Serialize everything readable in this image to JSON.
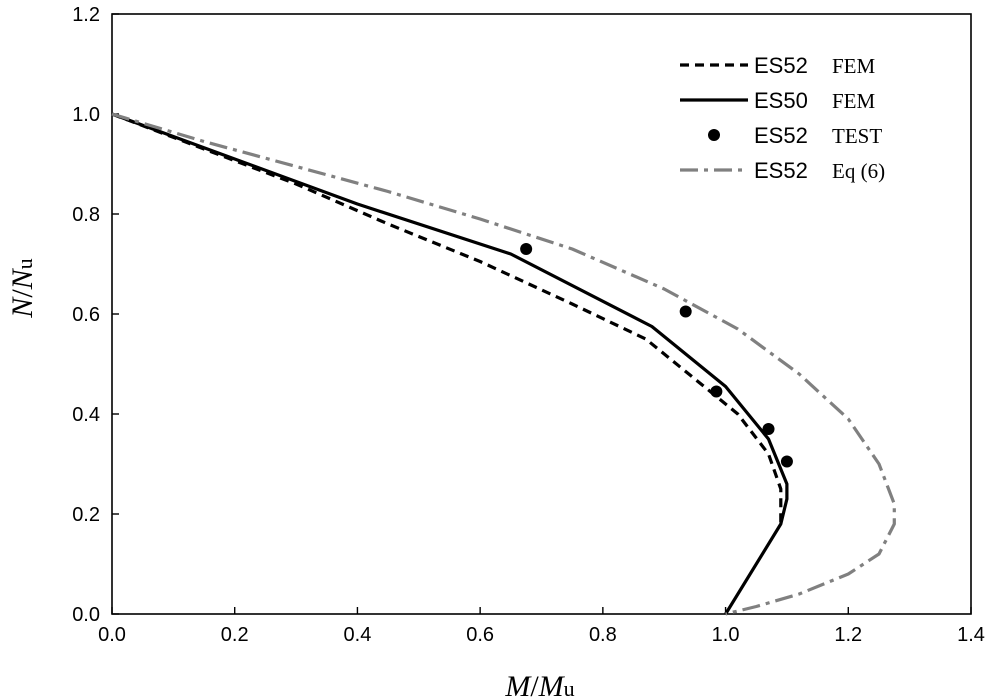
{
  "chart_data": {
    "type": "line",
    "xlabel": {
      "main": "M",
      "sep": "/",
      "base": "M",
      "sub": "u"
    },
    "ylabel": {
      "main": "N",
      "sep": "/",
      "base": "N",
      "sub": "u"
    },
    "xlim": [
      0,
      1.4
    ],
    "ylim": [
      0,
      1.2
    ],
    "xticks": [
      "0.0",
      "0.2",
      "0.4",
      "0.6",
      "0.8",
      "1.0",
      "1.2",
      "1.4"
    ],
    "yticks": [
      "0.0",
      "0.2",
      "0.4",
      "0.6",
      "0.8",
      "1.0",
      "1.2"
    ],
    "grid": false,
    "legend_position": "top-right",
    "series": [
      {
        "name": "ES52",
        "tag": "FEM",
        "style": "dashed",
        "color": "#000000",
        "x": [
          0,
          0.15,
          0.3,
          0.45,
          0.6,
          0.75,
          0.87,
          0.95,
          1.02,
          1.07,
          1.09,
          1.09
        ],
        "y": [
          1.0,
          0.93,
          0.86,
          0.78,
          0.705,
          0.62,
          0.55,
          0.47,
          0.4,
          0.32,
          0.25,
          0.18
        ]
      },
      {
        "name": "ES50",
        "tag": "FEM",
        "style": "solid",
        "color": "#000000",
        "x": [
          0,
          0.2,
          0.4,
          0.65,
          0.88,
          1.0,
          1.07,
          1.1,
          1.1,
          1.09,
          1.0
        ],
        "y": [
          1.0,
          0.91,
          0.82,
          0.72,
          0.575,
          0.455,
          0.35,
          0.26,
          0.23,
          0.18,
          0.0
        ]
      },
      {
        "name": "ES52",
        "tag": "TEST",
        "style": "markers",
        "color": "#000000",
        "x": [
          0.675,
          0.935,
          0.985,
          1.07,
          1.1
        ],
        "y": [
          0.73,
          0.605,
          0.445,
          0.37,
          0.305
        ]
      },
      {
        "name": "ES52",
        "tag": "Eq (6)",
        "style": "dashdot",
        "color": "#808080",
        "x": [
          0,
          0.15,
          0.3,
          0.45,
          0.6,
          0.75,
          0.9,
          1.02,
          1.12,
          1.2,
          1.25,
          1.275,
          1.275,
          1.25,
          1.2,
          1.12,
          1.05,
          1.0
        ],
        "y": [
          1.0,
          0.945,
          0.895,
          0.845,
          0.79,
          0.73,
          0.65,
          0.57,
          0.48,
          0.39,
          0.3,
          0.22,
          0.18,
          0.12,
          0.08,
          0.04,
          0.015,
          0.0
        ]
      }
    ]
  }
}
